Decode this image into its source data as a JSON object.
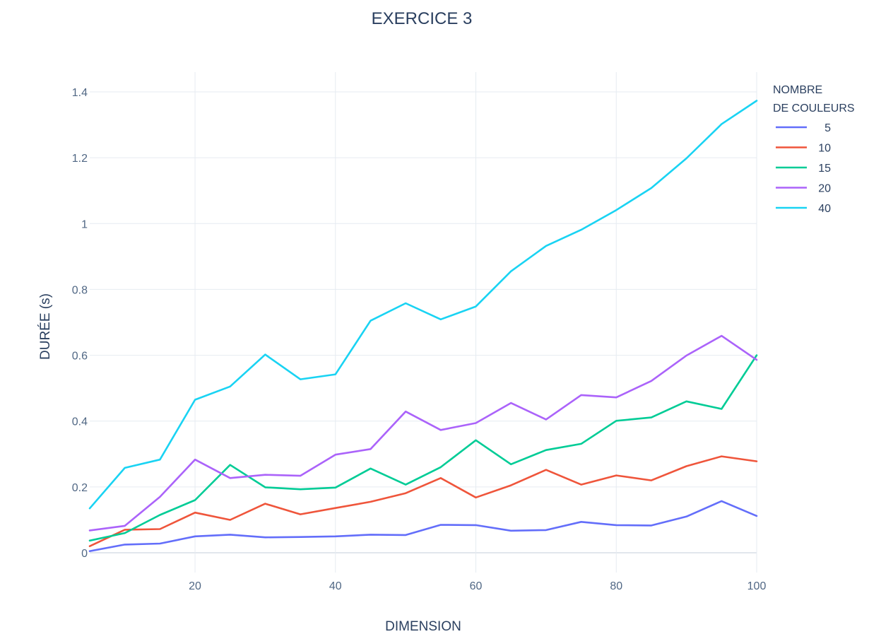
{
  "chart_data": {
    "type": "line",
    "title": "EXERCICE 3",
    "xlabel": "DIMENSION",
    "ylabel": "DURÉE (s)",
    "xlim": [
      5,
      100
    ],
    "ylim": [
      -0.06,
      1.46
    ],
    "x_ticks": [
      20,
      40,
      60,
      80,
      100
    ],
    "y_ticks": [
      0,
      0.2,
      0.4,
      0.6,
      0.8,
      1,
      1.2,
      1.4
    ],
    "y_tick_labels": [
      "0",
      "0.2",
      "0.4",
      "0.6",
      "0.8",
      "1",
      "1.2",
      "1.4"
    ],
    "grid": true,
    "legend_title_lines": [
      "NOMBRE",
      "DE COULEURS"
    ],
    "legend_position": "top-right",
    "x": [
      5,
      10,
      15,
      20,
      25,
      30,
      35,
      40,
      45,
      50,
      55,
      60,
      65,
      70,
      75,
      80,
      85,
      90,
      95,
      100
    ],
    "series": [
      {
        "name": "5",
        "color": "#636efa",
        "values": [
          0.005,
          0.025,
          0.028,
          0.05,
          0.055,
          0.047,
          0.048,
          0.05,
          0.055,
          0.054,
          0.085,
          0.084,
          0.067,
          0.069,
          0.094,
          0.084,
          0.083,
          0.11,
          0.157,
          0.112
        ]
      },
      {
        "name": "10",
        "color": "#ef553b",
        "values": [
          0.02,
          0.07,
          0.072,
          0.122,
          0.1,
          0.149,
          0.117,
          0.136,
          0.155,
          0.181,
          0.227,
          0.168,
          0.205,
          0.252,
          0.207,
          0.235,
          0.22,
          0.263,
          0.293,
          0.278
        ]
      },
      {
        "name": "15",
        "color": "#00cc96",
        "values": [
          0.037,
          0.06,
          0.115,
          0.16,
          0.267,
          0.199,
          0.193,
          0.198,
          0.256,
          0.207,
          0.26,
          0.342,
          0.269,
          0.312,
          0.331,
          0.401,
          0.411,
          0.46,
          0.437,
          0.6
        ]
      },
      {
        "name": "20",
        "color": "#ab63fa",
        "values": [
          0.068,
          0.082,
          0.17,
          0.283,
          0.227,
          0.237,
          0.234,
          0.298,
          0.315,
          0.429,
          0.373,
          0.394,
          0.455,
          0.405,
          0.479,
          0.472,
          0.522,
          0.599,
          0.659,
          0.586
        ]
      },
      {
        "name": "40",
        "color": "#19d3f3",
        "values": [
          0.135,
          0.258,
          0.283,
          0.465,
          0.505,
          0.602,
          0.527,
          0.542,
          0.705,
          0.758,
          0.709,
          0.748,
          0.855,
          0.932,
          0.981,
          1.041,
          1.108,
          1.198,
          1.302,
          1.373
        ]
      }
    ]
  }
}
